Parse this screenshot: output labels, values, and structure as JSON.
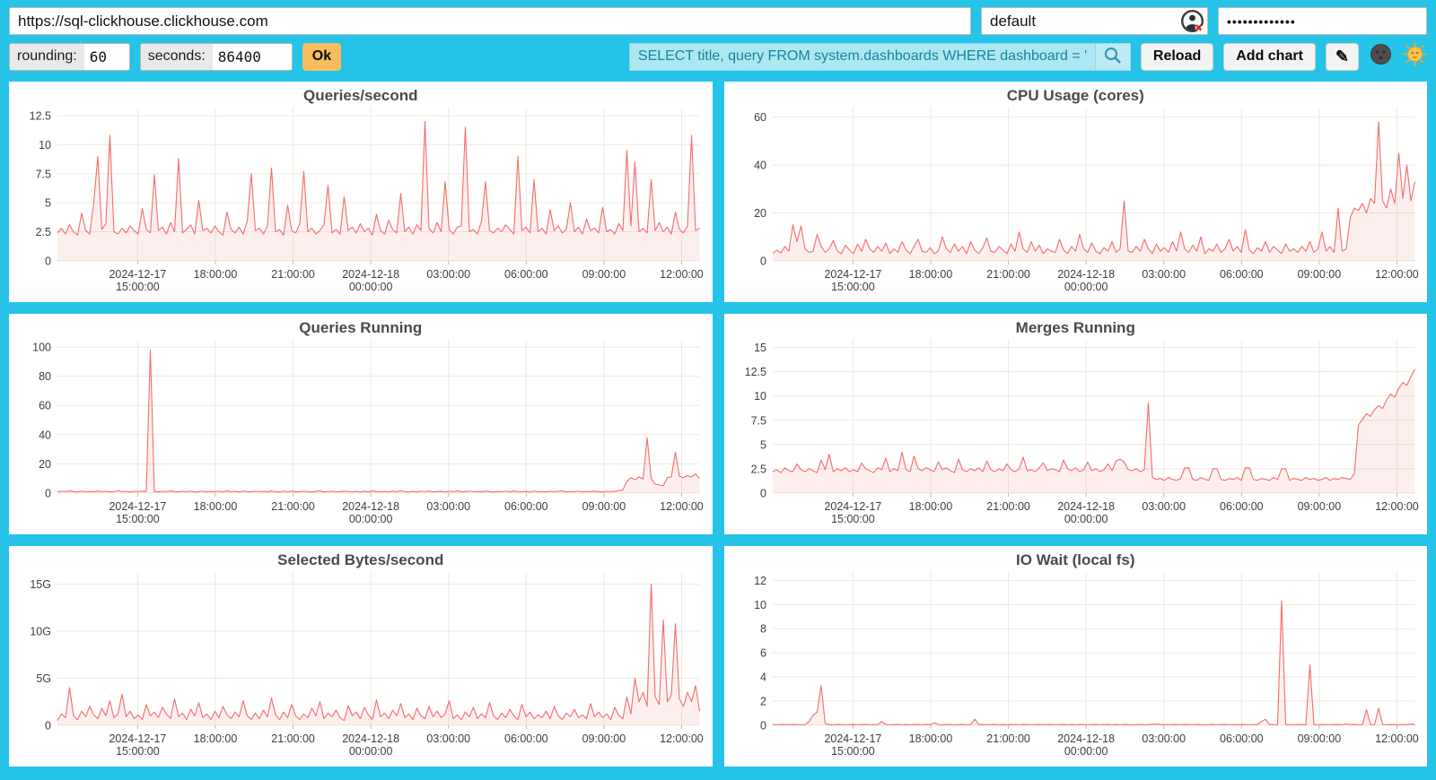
{
  "toolbar": {
    "url_value": "https://sql-clickhouse.clickhouse.com",
    "user_value": "default",
    "password_value": "•••••••••••••",
    "rounding_label": "rounding:",
    "rounding_value": "60",
    "seconds_label": "seconds:",
    "seconds_value": "86400",
    "ok_label": "Ok",
    "query_value": "SELECT title, query FROM system.dashboards WHERE dashboard = '",
    "reload_label": "Reload",
    "add_chart_label": "Add chart",
    "edit_glyph": "✎",
    "icons": {
      "user_status": "person-circle-with-red-x-icon",
      "search": "magnifier-icon",
      "edit": "pencil-icon",
      "dark_theme": "moon-face-icon",
      "light_theme": "sun-face-icon"
    }
  },
  "colors": {
    "background": "#25c3e7",
    "card": "#ffffff",
    "accent_orange": "#f7bd5f",
    "query_bg": "#aee7f4",
    "query_text": "#15849c"
  },
  "chart_data": {
    "line_color": "#f56c6c",
    "fill_color": "rgba(245,108,108,0.11)",
    "grid_color": "#edeadf",
    "axis_text_color": "#3d3d3d",
    "legend": "none",
    "x_ticks": [
      {
        "frac": 0.125,
        "lines": [
          "2024-12-17",
          "15:00:00"
        ]
      },
      {
        "frac": 0.246,
        "lines": [
          "18:00:00"
        ]
      },
      {
        "frac": 0.367,
        "lines": [
          "21:00:00"
        ]
      },
      {
        "frac": 0.488,
        "lines": [
          "2024-12-18",
          "00:00:00"
        ]
      },
      {
        "frac": 0.609,
        "lines": [
          "03:00:00"
        ]
      },
      {
        "frac": 0.73,
        "lines": [
          "06:00:00"
        ]
      },
      {
        "frac": 0.851,
        "lines": [
          "09:00:00"
        ]
      },
      {
        "frac": 0.972,
        "lines": [
          "12:00:00"
        ]
      }
    ],
    "charts": [
      {
        "type": "line",
        "title": "Queries/second",
        "ylim": [
          0,
          13.2
        ],
        "y_ticks": [
          {
            "v": 0,
            "label": "0"
          },
          {
            "v": 2.5,
            "label": "2.5"
          },
          {
            "v": 5,
            "label": "5"
          },
          {
            "v": 7.5,
            "label": "7.5"
          },
          {
            "v": 10,
            "label": "10"
          },
          {
            "v": 12.5,
            "label": "12.5"
          }
        ],
        "values": [
          2.4,
          2.8,
          2.3,
          3.1,
          2.5,
          2.2,
          4.1,
          2.6,
          2.3,
          5.0,
          9.0,
          2.7,
          3.2,
          10.8,
          2.5,
          2.3,
          2.8,
          2.4,
          3.0,
          2.6,
          2.3,
          4.5,
          2.7,
          2.4,
          7.4,
          2.6,
          2.9,
          2.3,
          3.3,
          2.5,
          8.8,
          2.4,
          2.7,
          3.1,
          2.3,
          5.2,
          2.6,
          2.8,
          2.4,
          3.0,
          2.5,
          2.2,
          4.2,
          2.7,
          2.4,
          2.9,
          2.3,
          3.4,
          7.5,
          2.6,
          2.8,
          2.3,
          3.0,
          8.0,
          2.5,
          2.7,
          2.2,
          4.8,
          2.6,
          2.4,
          3.2,
          7.7,
          2.5,
          2.8,
          2.3,
          2.6,
          3.1,
          6.5,
          2.4,
          2.7,
          2.3,
          5.5,
          2.6,
          2.9,
          2.4,
          3.2,
          2.5,
          2.8,
          2.2,
          4.0,
          2.6,
          2.3,
          3.5,
          2.7,
          2.4,
          5.8,
          2.5,
          2.9,
          2.3,
          3.1,
          2.6,
          12.0,
          2.8,
          2.4,
          3.3,
          2.5,
          6.8,
          2.7,
          2.3,
          2.9,
          3.0,
          11.5,
          2.5,
          2.7,
          2.3,
          3.4,
          6.8,
          2.6,
          2.4,
          2.8,
          2.5,
          3.1,
          2.7,
          2.3,
          9.0,
          2.6,
          2.9,
          2.4,
          7.0,
          2.5,
          2.8,
          2.3,
          4.4,
          2.6,
          3.0,
          2.4,
          2.7,
          5.0,
          2.5,
          2.9,
          2.3,
          3.6,
          2.6,
          2.8,
          2.4,
          4.6,
          2.5,
          2.7,
          2.3,
          3.2,
          2.6,
          9.5,
          3.0,
          8.5,
          2.5,
          2.8,
          2.4,
          7.0,
          2.6,
          3.3,
          2.5,
          2.9,
          2.3,
          4.2,
          2.7,
          2.4,
          3.0,
          10.8,
          2.6,
          2.8
        ]
      },
      {
        "type": "line",
        "title": "CPU Usage (cores)",
        "ylim": [
          0,
          64
        ],
        "y_ticks": [
          {
            "v": 0,
            "label": "0"
          },
          {
            "v": 20,
            "label": "20"
          },
          {
            "v": 40,
            "label": "40"
          },
          {
            "v": 60,
            "label": "60"
          }
        ],
        "values": [
          3,
          4.5,
          3.2,
          6,
          4,
          15,
          8,
          14.5,
          5,
          3.5,
          4,
          11,
          6,
          3.5,
          5,
          8.5,
          4,
          3,
          6.5,
          4.5,
          3,
          7,
          4,
          9,
          5,
          3.5,
          6,
          4,
          7.5,
          3,
          5,
          3.5,
          8,
          4.5,
          3,
          6,
          9,
          4,
          3.5,
          5.5,
          3,
          4,
          10,
          5,
          3.5,
          7,
          4,
          6,
          3,
          8,
          4.5,
          3,
          5.5,
          9.5,
          4,
          3.5,
          6,
          4.5,
          3,
          7,
          4,
          12,
          5,
          3.5,
          8,
          4,
          6.5,
          3,
          5,
          4,
          3.5,
          9,
          4.5,
          3,
          6,
          4,
          11,
          5,
          3.5,
          7.5,
          4,
          3,
          5.5,
          4,
          8,
          3.5,
          5,
          25,
          4,
          3.5,
          6,
          4,
          9,
          5,
          3,
          7,
          4,
          5.5,
          3.5,
          8,
          4,
          12,
          5,
          3.5,
          6.5,
          4,
          10,
          3,
          5,
          4,
          7,
          3.5,
          5,
          9,
          4,
          6,
          3.5,
          13,
          4.5,
          3,
          5.5,
          4,
          8,
          3.5,
          6,
          4.5,
          3,
          7,
          4,
          5,
          3.5,
          6,
          4,
          8,
          3.5,
          5,
          12,
          4,
          6,
          3.5,
          22,
          4,
          5,
          18,
          22,
          21,
          24,
          20,
          26,
          24,
          58,
          25,
          22,
          30,
          24,
          45,
          26,
          40,
          25,
          33
        ]
      },
      {
        "type": "line",
        "title": "Queries Running",
        "ylim": [
          0,
          105
        ],
        "y_ticks": [
          {
            "v": 0,
            "label": "0"
          },
          {
            "v": 20,
            "label": "20"
          },
          {
            "v": 40,
            "label": "40"
          },
          {
            "v": 60,
            "label": "60"
          },
          {
            "v": 80,
            "label": "80"
          },
          {
            "v": 100,
            "label": "100"
          }
        ],
        "values": [
          0.8,
          1.2,
          0.9,
          1.5,
          1.0,
          0.7,
          1.3,
          0.9,
          1.1,
          0.8,
          1.4,
          0.9,
          1.2,
          0.8,
          1.0,
          1.6,
          0.9,
          1.1,
          0.7,
          1.2,
          0.9,
          1.3,
          1.0,
          98,
          1.1,
          0.8,
          1.2,
          0.9,
          1.4,
          1.0,
          0.8,
          1.1,
          0.9,
          1.3,
          0.7,
          1.0,
          1.2,
          0.8,
          1.1,
          0.9,
          1.2,
          0.8,
          1.5,
          0.9,
          1.1,
          0.7,
          1.3,
          1.0,
          0.8,
          1.2,
          0.9,
          1.1,
          0.8,
          1.4,
          1.0,
          0.7,
          1.2,
          0.9,
          1.3,
          0.8,
          1.0,
          1.2,
          0.9,
          0.7,
          1.1,
          1.4,
          0.8,
          1.0,
          1.2,
          0.9,
          0.8,
          1.3,
          1.0,
          0.9,
          1.1,
          0.7,
          1.2,
          0.8,
          1.4,
          1.0,
          0.9,
          1.1,
          0.8,
          1.2,
          1.0,
          1.5,
          0.9,
          0.7,
          1.1,
          0.8,
          1.2,
          0.9,
          1.3,
          0.8,
          1.0,
          1.1,
          0.7,
          1.2,
          0.9,
          1.4,
          0.8,
          1.0,
          1.2,
          0.9,
          1.1,
          0.8,
          1.3,
          1.0,
          0.7,
          1.1,
          0.9,
          1.2,
          0.8,
          1.4,
          1.0,
          0.9,
          1.1,
          0.7,
          1.3,
          0.9,
          1.0,
          0.8,
          1.2,
          0.9,
          1.1,
          1.4,
          0.8,
          1.0,
          0.9,
          1.2,
          0.8,
          1.1,
          0.9,
          1.3,
          1.0,
          0.7,
          1.2,
          0.9,
          1.1,
          1.6,
          2.0,
          8.0,
          10.5,
          9.0,
          11.0,
          9.5,
          38,
          10,
          6,
          5.5,
          5.0,
          10.5,
          11,
          28,
          11.5,
          10.5,
          12,
          11,
          13,
          10
        ]
      },
      {
        "type": "line",
        "title": "Merges Running",
        "ylim": [
          0,
          15.8
        ],
        "y_ticks": [
          {
            "v": 0,
            "label": "0"
          },
          {
            "v": 2.5,
            "label": "2.5"
          },
          {
            "v": 5,
            "label": "5"
          },
          {
            "v": 7.5,
            "label": "7.5"
          },
          {
            "v": 10,
            "label": "10"
          },
          {
            "v": 12.5,
            "label": "12.5"
          },
          {
            "v": 15,
            "label": "15"
          }
        ],
        "values": [
          2.2,
          2.4,
          2.1,
          2.6,
          2.3,
          2.2,
          3.0,
          2.4,
          2.2,
          2.5,
          2.3,
          2.1,
          3.4,
          2.4,
          4.0,
          2.2,
          2.5,
          2.3,
          2.6,
          2.2,
          2.4,
          2.2,
          3.1,
          2.5,
          2.3,
          2.1,
          2.6,
          2.4,
          3.6,
          2.2,
          2.5,
          2.3,
          4.2,
          2.4,
          2.2,
          3.8,
          2.5,
          2.3,
          2.6,
          2.4,
          2.2,
          3.2,
          2.4,
          2.6,
          2.3,
          2.1,
          3.5,
          2.4,
          2.2,
          2.5,
          2.3,
          2.6,
          2.2,
          3.3,
          2.4,
          2.2,
          2.5,
          2.3,
          3.0,
          2.4,
          2.2,
          2.5,
          3.7,
          2.3,
          2.4,
          2.2,
          2.6,
          3.1,
          2.3,
          2.5,
          2.4,
          2.2,
          3.4,
          2.5,
          2.3,
          2.6,
          2.2,
          2.4,
          3.2,
          2.3,
          2.5,
          2.2,
          2.4,
          3.0,
          2.3,
          3.3,
          3.5,
          3.2,
          2.4,
          2.3,
          2.5,
          2.2,
          2.4,
          9.3,
          1.6,
          1.4,
          1.5,
          1.3,
          1.6,
          1.4,
          1.3,
          1.5,
          2.6,
          2.6,
          1.4,
          1.3,
          1.6,
          1.4,
          1.3,
          2.5,
          2.5,
          1.4,
          1.3,
          1.5,
          1.4,
          1.6,
          1.3,
          2.6,
          2.6,
          1.4,
          1.3,
          1.5,
          1.4,
          1.3,
          1.6,
          1.4,
          2.5,
          2.5,
          1.3,
          1.5,
          1.4,
          1.3,
          1.6,
          1.4,
          1.5,
          1.3,
          1.4,
          1.6,
          1.3,
          1.5,
          1.4,
          1.6,
          1.5,
          1.4,
          2.0,
          7.0,
          7.6,
          8.2,
          7.9,
          8.6,
          9.0,
          8.7,
          9.6,
          10.2,
          9.9,
          10.8,
          11.4,
          11.1,
          12.0,
          12.8
        ]
      },
      {
        "type": "line",
        "title": "Selected Bytes/second",
        "ylim": [
          0,
          16.3
        ],
        "y_ticks": [
          {
            "v": 0,
            "label": "0"
          },
          {
            "v": 5,
            "label": "5G"
          },
          {
            "v": 10,
            "label": "10G"
          },
          {
            "v": 15,
            "label": "15G"
          }
        ],
        "values": [
          0.5,
          1.2,
          0.8,
          4.0,
          1.0,
          0.6,
          1.5,
          0.9,
          2.0,
          1.1,
          0.7,
          1.8,
          1.0,
          2.6,
          0.8,
          1.2,
          3.3,
          0.9,
          1.5,
          0.7,
          1.1,
          0.6,
          2.2,
          1.0,
          1.4,
          0.8,
          1.9,
          1.2,
          0.7,
          2.8,
          0.9,
          1.3,
          0.6,
          1.7,
          1.0,
          2.4,
          0.8,
          1.2,
          0.6,
          1.5,
          0.8,
          2.0,
          1.1,
          0.7,
          1.4,
          0.9,
          2.6,
          1.0,
          0.6,
          1.3,
          0.7,
          1.6,
          0.9,
          2.9,
          1.1,
          0.6,
          1.4,
          0.8,
          2.2,
          1.0,
          0.6,
          1.2,
          0.8,
          1.8,
          1.0,
          2.5,
          0.7,
          1.3,
          0.9,
          1.6,
          0.8,
          0.5,
          2.1,
          1.0,
          1.4,
          0.7,
          1.9,
          1.1,
          0.6,
          2.7,
          0.9,
          1.3,
          0.7,
          1.6,
          1.0,
          2.3,
          0.8,
          1.2,
          0.6,
          1.8,
          1.0,
          0.7,
          2.0,
          0.9,
          1.5,
          0.8,
          1.2,
          2.6,
          0.7,
          1.1,
          0.6,
          1.4,
          0.9,
          1.9,
          0.7,
          1.2,
          0.8,
          2.4,
          1.0,
          0.6,
          1.3,
          0.8,
          1.7,
          1.0,
          0.6,
          2.2,
          0.9,
          1.4,
          0.7,
          1.1,
          0.8,
          1.5,
          0.7,
          2.0,
          1.0,
          0.6,
          1.3,
          0.9,
          1.7,
          0.8,
          1.1,
          0.7,
          2.3,
          0.9,
          1.4,
          0.8,
          1.2,
          0.6,
          1.9,
          1.0,
          0.7,
          3.0,
          1.2,
          5.0,
          2.5,
          3.5,
          2.0,
          15.0,
          3.0,
          2.2,
          11.2,
          2.5,
          3.2,
          10.8,
          2.8,
          2.0,
          3.5,
          2.5,
          4.2,
          1.5
        ]
      },
      {
        "type": "line",
        "title": "IO Wait (local fs)",
        "ylim": [
          0,
          12.7
        ],
        "y_ticks": [
          {
            "v": 0,
            "label": "0"
          },
          {
            "v": 2,
            "label": "2"
          },
          {
            "v": 4,
            "label": "4"
          },
          {
            "v": 6,
            "label": "6"
          },
          {
            "v": 8,
            "label": "8"
          },
          {
            "v": 10,
            "label": "10"
          },
          {
            "v": 12,
            "label": "12"
          }
        ],
        "values": [
          0.05,
          0.04,
          0.06,
          0.05,
          0.04,
          0.06,
          0.05,
          0.04,
          0.05,
          0.3,
          0.8,
          1.1,
          3.3,
          0.15,
          0.05,
          0.04,
          0.06,
          0.05,
          0.04,
          0.05,
          0.06,
          0.04,
          0.05,
          0.06,
          0.04,
          0.05,
          0.06,
          0.3,
          0.05,
          0.04,
          0.05,
          0.06,
          0.04,
          0.05,
          0.04,
          0.06,
          0.05,
          0.04,
          0.06,
          0.05,
          0.2,
          0.05,
          0.04,
          0.06,
          0.05,
          0.04,
          0.05,
          0.06,
          0.04,
          0.05,
          0.5,
          0.05,
          0.06,
          0.04,
          0.05,
          0.06,
          0.04,
          0.05,
          0.04,
          0.06,
          0.05,
          0.04,
          0.06,
          0.05,
          0.04,
          0.05,
          0.06,
          0.04,
          0.05,
          0.06,
          0.04,
          0.05,
          0.06,
          0.04,
          0.05,
          0.04,
          0.06,
          0.05,
          0.04,
          0.05,
          0.06,
          0.04,
          0.05,
          0.06,
          0.04,
          0.05,
          0.04,
          0.06,
          0.05,
          0.04,
          0.05,
          0.06,
          0.04,
          0.05,
          0.08,
          0.1,
          0.06,
          0.05,
          0.04,
          0.06,
          0.05,
          0.04,
          0.06,
          0.05,
          0.04,
          0.06,
          0.05,
          0.04,
          0.05,
          0.06,
          0.04,
          0.05,
          0.06,
          0.04,
          0.05,
          0.04,
          0.06,
          0.05,
          0.04,
          0.05,
          0.06,
          0.3,
          0.5,
          0.06,
          0.05,
          0.04,
          10.3,
          0.06,
          0.05,
          0.04,
          0.05,
          0.06,
          0.04,
          5.0,
          0.05,
          0.04,
          0.06,
          0.05,
          0.04,
          0.05,
          0.06,
          0.04,
          0.1,
          0.05,
          0.06,
          0.04,
          0.05,
          1.3,
          0.04,
          0.05,
          1.4,
          0.05,
          0.04,
          0.06,
          0.05,
          0.04,
          0.05,
          0.06,
          0.1,
          0.05
        ]
      }
    ]
  }
}
